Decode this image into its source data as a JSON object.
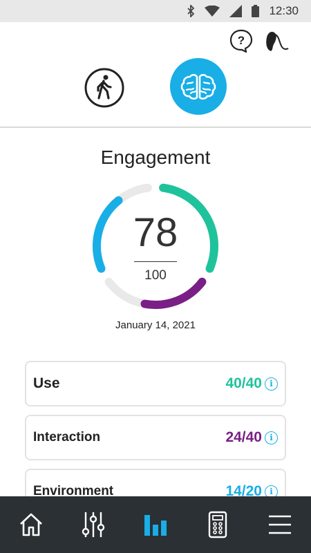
{
  "status_bar": {
    "time": "12:30",
    "icons": [
      "bluetooth-icon",
      "wifi-icon",
      "signal-icon",
      "battery-icon"
    ]
  },
  "top_actions": {
    "icons": [
      "help-icon",
      "hearing-aid-icon"
    ]
  },
  "modes": {
    "items": [
      {
        "icon": "walking-person-icon",
        "active": false
      },
      {
        "icon": "brain-icon",
        "active": true
      }
    ]
  },
  "engagement": {
    "title": "Engagement",
    "score": "78",
    "max": "100",
    "date": "January 14, 2021",
    "score_value": 78,
    "max_value": 100
  },
  "cards": [
    {
      "label": "Use",
      "score": "40/40",
      "value": 40,
      "max": 40,
      "color": "#1fc39b"
    },
    {
      "label": "Interaction",
      "score": "24/40",
      "value": 24,
      "max": 40,
      "color": "#7a1f86"
    },
    {
      "label": "Environment",
      "score": "14/20",
      "value": 14,
      "max": 20,
      "color": "#19aee6"
    }
  ],
  "colors": {
    "accent": "#19aee6",
    "use": "#1fc39b",
    "interaction": "#7a1f86",
    "environment": "#19aee6",
    "track": "#e9e9e9",
    "nav_bg": "#2b3034"
  },
  "bottom_nav": {
    "items": [
      {
        "icon": "home-icon",
        "active": false
      },
      {
        "icon": "sliders-icon",
        "active": false
      },
      {
        "icon": "bar-chart-icon",
        "active": true
      },
      {
        "icon": "remote-control-icon",
        "active": false
      },
      {
        "icon": "menu-icon",
        "active": false
      }
    ]
  }
}
